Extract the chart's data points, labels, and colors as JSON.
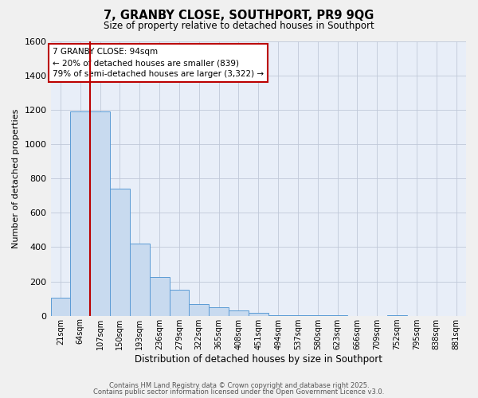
{
  "title": "7, GRANBY CLOSE, SOUTHPORT, PR9 9QG",
  "subtitle": "Size of property relative to detached houses in Southport",
  "xlabel": "Distribution of detached houses by size in Southport",
  "ylabel": "Number of detached properties",
  "bar_labels": [
    "21sqm",
    "64sqm",
    "107sqm",
    "150sqm",
    "193sqm",
    "236sqm",
    "279sqm",
    "322sqm",
    "365sqm",
    "408sqm",
    "451sqm",
    "494sqm",
    "537sqm",
    "580sqm",
    "623sqm",
    "666sqm",
    "709sqm",
    "752sqm",
    "795sqm",
    "838sqm",
    "881sqm"
  ],
  "bar_values": [
    103,
    1190,
    1190,
    740,
    420,
    225,
    150,
    70,
    50,
    30,
    15,
    5,
    2,
    1,
    1,
    0,
    0,
    1,
    0,
    0,
    0
  ],
  "bar_color": "#c8daef",
  "bar_edge_color": "#5b9bd5",
  "vline_x_index": 1.5,
  "vline_color": "#bb0000",
  "ylim": [
    0,
    1600
  ],
  "yticks": [
    0,
    200,
    400,
    600,
    800,
    1000,
    1200,
    1400,
    1600
  ],
  "annotation_title": "7 GRANBY CLOSE: 94sqm",
  "annotation_line1": "← 20% of detached houses are smaller (839)",
  "annotation_line2": "79% of semi-detached houses are larger (3,322) →",
  "footer1": "Contains HM Land Registry data © Crown copyright and database right 2025.",
  "footer2": "Contains public sector information licensed under the Open Government Licence v3.0.",
  "background_color": "#f0f0f0",
  "plot_bg_color": "#e8eef8",
  "grid_color": "#c0c8d8"
}
